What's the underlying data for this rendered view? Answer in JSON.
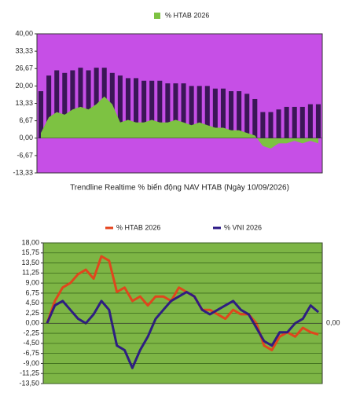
{
  "chart_data": [
    {
      "type": "combo",
      "xlabel": "Trendline Realtime % biến động NAV HTAB (Ngày 10/09/2026)",
      "background": "#c64fe6",
      "categories": [
        null,
        null,
        null,
        null,
        null,
        null,
        null,
        null,
        null,
        null,
        null,
        null,
        null,
        null,
        null,
        null,
        null,
        null,
        null,
        null,
        null,
        null,
        null,
        null,
        null,
        null,
        null,
        null,
        null,
        null,
        null,
        null,
        null,
        null,
        null,
        null
      ],
      "series": [
        {
          "name": "% HTAB 2026",
          "type": "area",
          "color": "#7dc242",
          "values": [
            2,
            8,
            10,
            9,
            11,
            12,
            11,
            13,
            16,
            13,
            6,
            7,
            6,
            6,
            7,
            6,
            6,
            7,
            6,
            5,
            6,
            5,
            4,
            4,
            3,
            3,
            2,
            1,
            -3,
            -4,
            -2,
            -2,
            -1,
            -2,
            -1,
            -2
          ]
        },
        {
          "type": "bar",
          "color": "#3b1657",
          "values": [
            18,
            24,
            26,
            25,
            26,
            27,
            26,
            27,
            27,
            25,
            24,
            23,
            23,
            22,
            22,
            22,
            21,
            21,
            21,
            20,
            20,
            20,
            19,
            19,
            18,
            18,
            17,
            15,
            10,
            10,
            11,
            12,
            12,
            12,
            13,
            13
          ]
        }
      ],
      "ylim": [
        -13.33,
        40
      ],
      "yticks": [
        {
          "value": 40,
          "label": "40,00"
        },
        {
          "value": 33.33,
          "label": "33,33"
        },
        {
          "value": 26.67,
          "label": "26,67"
        },
        {
          "value": 20,
          "label": "20,00"
        },
        {
          "value": 13.33,
          "label": "13,33"
        },
        {
          "value": 6.67,
          "label": "6,67"
        },
        {
          "value": 0,
          "label": "0,00"
        },
        {
          "value": -6.67,
          "label": "-6,67"
        },
        {
          "value": -13.33,
          "label": "-13,33"
        }
      ],
      "grid": false
    },
    {
      "type": "line",
      "background": "#7db545",
      "categories": [
        null,
        null,
        null,
        null,
        null,
        null,
        null,
        null,
        null,
        null,
        null,
        null,
        null,
        null,
        null,
        null,
        null,
        null,
        null,
        null,
        null,
        null,
        null,
        null,
        null,
        null,
        null,
        null,
        null,
        null,
        null,
        null,
        null,
        null,
        null,
        null
      ],
      "series": [
        {
          "name": "% HTAB 2026",
          "color": "#e5411b",
          "values": [
            0,
            5,
            8,
            9,
            11,
            12,
            10,
            15,
            14,
            7,
            8,
            5,
            6,
            4,
            6,
            6,
            5,
            8,
            7,
            6,
            3,
            3,
            2,
            1,
            3,
            2,
            2,
            0,
            -5,
            -6,
            -3,
            -2,
            -3,
            -1,
            -2,
            -2.5
          ]
        },
        {
          "name": "% VNI 2026",
          "color": "#2a1785",
          "values": [
            0,
            4,
            5,
            3,
            1,
            0,
            2,
            5,
            3,
            -5,
            -6,
            -10,
            -6,
            -3,
            1,
            3,
            5,
            6,
            7,
            6,
            3,
            2,
            3,
            4,
            5,
            3,
            2,
            -1,
            -4,
            -5,
            -2,
            -2,
            0,
            1,
            4,
            2.5
          ]
        }
      ],
      "ylim": [
        -13.5,
        18
      ],
      "yticks": [
        {
          "value": 18,
          "label": "18,00"
        },
        {
          "value": 15.75,
          "label": "15,75"
        },
        {
          "value": 13.5,
          "label": "13,50"
        },
        {
          "value": 11.25,
          "label": "11,25"
        },
        {
          "value": 9,
          "label": "9,00"
        },
        {
          "value": 6.75,
          "label": "6,75"
        },
        {
          "value": 4.5,
          "label": "4,50"
        },
        {
          "value": 2.25,
          "label": "2,25"
        },
        {
          "value": 0,
          "label": "0,00"
        },
        {
          "value": -2.25,
          "label": "-2,25"
        },
        {
          "value": -4.5,
          "label": "-4,50"
        },
        {
          "value": -6.75,
          "label": "-6,75"
        },
        {
          "value": -9,
          "label": "-9,00"
        },
        {
          "value": -11.25,
          "label": "-11,25"
        },
        {
          "value": -13.5,
          "label": "-13,50"
        }
      ],
      "y2lim": [
        -13.5,
        18
      ],
      "y2ticks": [
        {
          "value": 0,
          "label": "0,00"
        }
      ],
      "grid": true
    }
  ]
}
